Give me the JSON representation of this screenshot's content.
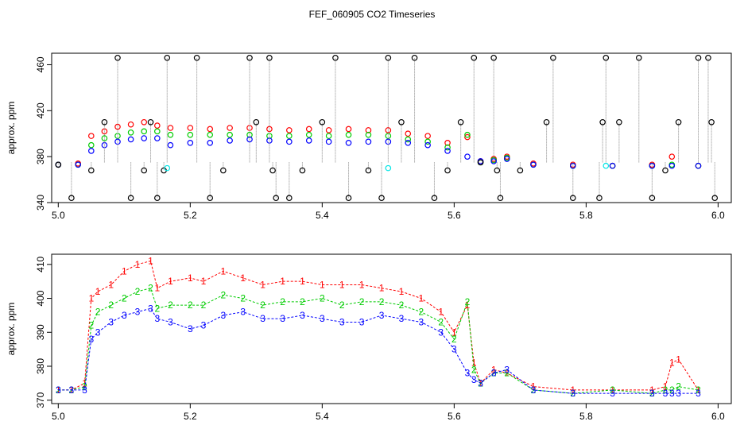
{
  "title": "FEF_060905  CO2 Timeseries",
  "colors": {
    "black": "#000000",
    "red": "#ff0000",
    "green": "#00cc00",
    "blue": "#0000ff",
    "cyan": "#00e5e5",
    "connector": "#888888"
  },
  "chart_data": [
    {
      "type": "scatter",
      "name": "top-panel",
      "ylabel": "approx. ppm",
      "xlabel": "",
      "xlim": [
        4.99,
        6.02
      ],
      "ylim": [
        340,
        470
      ],
      "xticks": [
        "5.0",
        "5.2",
        "5.4",
        "5.6",
        "5.8",
        "6.0"
      ],
      "yticks": [
        "340",
        "380",
        "420",
        "460"
      ],
      "series": [
        {
          "name": "red",
          "color": "red",
          "x": [
            5.0,
            5.03,
            5.05,
            5.07,
            5.09,
            5.11,
            5.13,
            5.15,
            5.17,
            5.2,
            5.23,
            5.26,
            5.29,
            5.32,
            5.35,
            5.38,
            5.41,
            5.44,
            5.47,
            5.5,
            5.53,
            5.56,
            5.59,
            5.62,
            5.64,
            5.66,
            5.68,
            5.72,
            5.78,
            5.84,
            5.9,
            5.93,
            5.97
          ],
          "values": [
            373,
            374,
            398,
            402,
            406,
            408,
            410,
            407,
            405,
            405,
            404,
            405,
            405,
            404,
            403,
            404,
            403,
            404,
            403,
            403,
            400,
            398,
            392,
            397,
            376,
            378,
            380,
            374,
            373,
            372,
            373,
            380,
            372
          ]
        },
        {
          "name": "green",
          "color": "green",
          "x": [
            5.0,
            5.03,
            5.05,
            5.07,
            5.09,
            5.11,
            5.13,
            5.15,
            5.17,
            5.2,
            5.23,
            5.26,
            5.29,
            5.32,
            5.35,
            5.38,
            5.41,
            5.44,
            5.47,
            5.5,
            5.53,
            5.56,
            5.59,
            5.62,
            5.64,
            5.66,
            5.68,
            5.72,
            5.78,
            5.84,
            5.9,
            5.93,
            5.97
          ],
          "values": [
            373,
            373,
            390,
            396,
            398,
            401,
            402,
            402,
            399,
            399,
            399,
            399,
            399,
            398,
            398,
            399,
            398,
            399,
            399,
            398,
            395,
            393,
            388,
            399,
            375,
            377,
            379,
            373,
            372,
            372,
            372,
            373,
            372
          ]
        },
        {
          "name": "blue",
          "color": "blue",
          "x": [
            5.0,
            5.03,
            5.05,
            5.07,
            5.09,
            5.11,
            5.13,
            5.15,
            5.17,
            5.2,
            5.23,
            5.26,
            5.29,
            5.32,
            5.35,
            5.38,
            5.41,
            5.44,
            5.47,
            5.5,
            5.53,
            5.56,
            5.59,
            5.62,
            5.64,
            5.66,
            5.68,
            5.72,
            5.78,
            5.84,
            5.9,
            5.93,
            5.97
          ],
          "values": [
            373,
            373,
            385,
            390,
            393,
            395,
            396,
            396,
            390,
            392,
            392,
            394,
            395,
            394,
            393,
            394,
            393,
            392,
            393,
            393,
            392,
            390,
            385,
            380,
            376,
            376,
            378,
            373,
            372,
            372,
            372,
            372,
            372
          ]
        },
        {
          "name": "black",
          "color": "black",
          "x": [
            5.0,
            5.02,
            5.05,
            5.07,
            5.09,
            5.11,
            5.13,
            5.14,
            5.15,
            5.16,
            5.165,
            5.21,
            5.23,
            5.25,
            5.29,
            5.3,
            5.32,
            5.325,
            5.33,
            5.35,
            5.37,
            5.4,
            5.42,
            5.44,
            5.47,
            5.49,
            5.5,
            5.52,
            5.54,
            5.57,
            5.59,
            5.61,
            5.63,
            5.64,
            5.66,
            5.665,
            5.67,
            5.7,
            5.74,
            5.75,
            5.78,
            5.82,
            5.825,
            5.83,
            5.85,
            5.88,
            5.9,
            5.92,
            5.94,
            5.97,
            5.985,
            5.99,
            5.995
          ],
          "values": [
            373,
            344,
            368,
            410,
            466,
            344,
            368,
            410,
            344,
            368,
            466,
            466,
            344,
            368,
            466,
            410,
            466,
            368,
            344,
            344,
            368,
            410,
            466,
            344,
            368,
            344,
            466,
            410,
            466,
            344,
            368,
            410,
            466,
            375,
            466,
            368,
            344,
            368,
            410,
            466,
            344,
            344,
            410,
            466,
            410,
            466,
            344,
            368,
            410,
            466,
            466,
            410,
            344
          ]
        },
        {
          "name": "cyan",
          "color": "cyan",
          "x": [
            5.165,
            5.5,
            5.83
          ],
          "values": [
            370,
            370,
            372
          ]
        }
      ]
    },
    {
      "type": "line",
      "name": "bottom-panel",
      "ylabel": "approx. ppm",
      "xlabel": "",
      "xlim": [
        4.99,
        6.02
      ],
      "ylim": [
        369,
        413
      ],
      "xticks": [
        "5.0",
        "5.2",
        "5.4",
        "5.6",
        "5.8",
        "6.0"
      ],
      "yticks": [
        "370",
        "380",
        "390",
        "400",
        "410"
      ],
      "series": [
        {
          "name": "1",
          "label": "1",
          "color": "red",
          "x": [
            5.0,
            5.02,
            5.04,
            5.05,
            5.06,
            5.08,
            5.1,
            5.12,
            5.14,
            5.15,
            5.17,
            5.2,
            5.22,
            5.25,
            5.28,
            5.31,
            5.34,
            5.37,
            5.4,
            5.43,
            5.46,
            5.49,
            5.52,
            5.55,
            5.58,
            5.6,
            5.62,
            5.63,
            5.64,
            5.66,
            5.68,
            5.72,
            5.78,
            5.84,
            5.9,
            5.92,
            5.93,
            5.94,
            5.97
          ],
          "values": [
            373,
            373,
            375,
            400,
            402,
            404,
            408,
            410,
            411,
            403,
            405,
            406,
            405,
            408,
            406,
            404,
            405,
            405,
            404,
            404,
            404,
            403,
            402,
            400,
            396,
            390,
            398,
            381,
            375,
            379,
            378,
            374,
            373,
            373,
            373,
            374,
            381,
            382,
            373
          ]
        },
        {
          "name": "2",
          "label": "2",
          "color": "green",
          "x": [
            5.0,
            5.02,
            5.04,
            5.05,
            5.06,
            5.08,
            5.1,
            5.12,
            5.14,
            5.15,
            5.17,
            5.2,
            5.22,
            5.25,
            5.28,
            5.31,
            5.34,
            5.37,
            5.4,
            5.43,
            5.46,
            5.49,
            5.52,
            5.55,
            5.58,
            5.6,
            5.62,
            5.63,
            5.64,
            5.66,
            5.68,
            5.72,
            5.78,
            5.84,
            5.9,
            5.92,
            5.93,
            5.94,
            5.97
          ],
          "values": [
            373,
            373,
            374,
            392,
            396,
            398,
            400,
            402,
            403,
            397,
            398,
            398,
            398,
            401,
            400,
            398,
            399,
            399,
            400,
            398,
            399,
            399,
            398,
            396,
            393,
            388,
            399,
            379,
            375,
            378,
            378,
            373,
            372,
            373,
            372,
            373,
            373,
            374,
            373
          ]
        },
        {
          "name": "3",
          "label": "3",
          "color": "blue",
          "x": [
            5.0,
            5.02,
            5.04,
            5.05,
            5.06,
            5.08,
            5.1,
            5.12,
            5.14,
            5.15,
            5.17,
            5.2,
            5.22,
            5.25,
            5.28,
            5.31,
            5.34,
            5.37,
            5.4,
            5.43,
            5.46,
            5.49,
            5.52,
            5.55,
            5.58,
            5.6,
            5.62,
            5.63,
            5.64,
            5.66,
            5.68,
            5.72,
            5.78,
            5.84,
            5.9,
            5.92,
            5.93,
            5.94,
            5.97
          ],
          "values": [
            373,
            373,
            373,
            388,
            390,
            393,
            395,
            396,
            397,
            394,
            393,
            391,
            392,
            395,
            396,
            394,
            394,
            395,
            394,
            393,
            393,
            395,
            394,
            393,
            390,
            385,
            378,
            376,
            375,
            378,
            379,
            373,
            372,
            372,
            372,
            372,
            372,
            372,
            372
          ]
        }
      ]
    }
  ]
}
